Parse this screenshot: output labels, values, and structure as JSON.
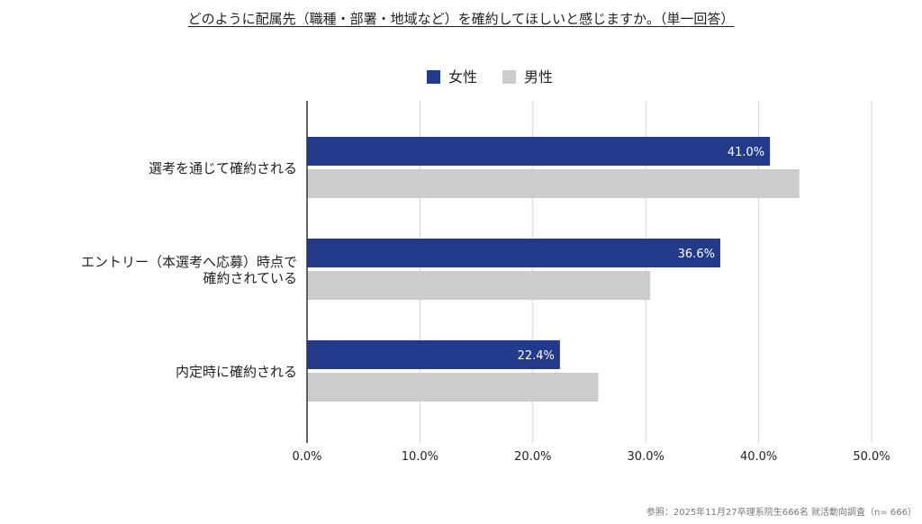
{
  "title": "どのように配属先（職種・部署・地域など）を確約してほしいと感じますか。（単一回答）",
  "source": "参照：2025年11月27卒理系院生666名 就活動向調査（n= 666）",
  "colors": {
    "female": "#233a8b",
    "male": "#cccccc",
    "grid": "#d4d4d4",
    "axis": "#333333"
  },
  "chart_data": {
    "type": "bar",
    "orientation": "horizontal",
    "categories": [
      [
        "選考を通じて確約される"
      ],
      [
        "エントリー（本選考へ応募）時点で",
        "確約されている"
      ],
      [
        "内定時に確約される"
      ]
    ],
    "series": [
      {
        "name": "女性",
        "values": [
          41.0,
          36.6,
          22.4
        ],
        "labels": [
          "41.0%",
          "36.6%",
          "22.4%"
        ]
      },
      {
        "name": "男性",
        "values": [
          43.6,
          30.4,
          25.8
        ]
      }
    ],
    "xlim": [
      0,
      50
    ],
    "xticks": [
      "0.0%",
      "10.0%",
      "20.0%",
      "30.0%",
      "40.0%",
      "50.0%"
    ],
    "grid": true,
    "legend": "top-center"
  }
}
